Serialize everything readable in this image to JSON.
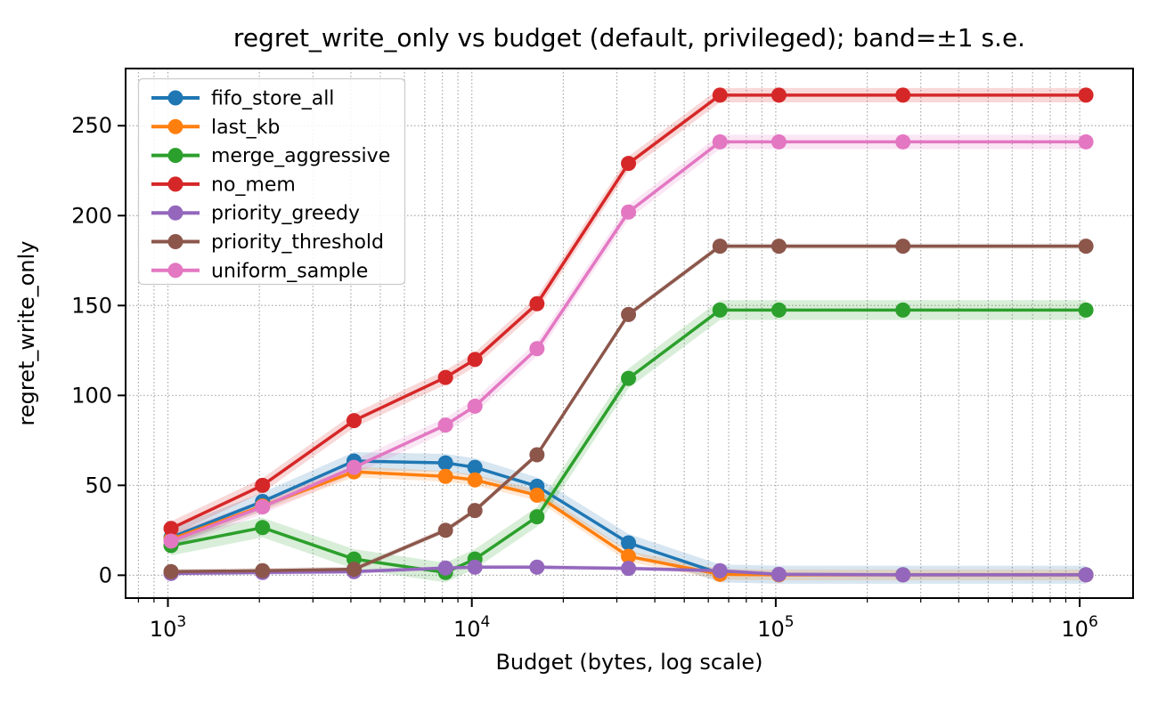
{
  "chart_data": {
    "type": "line",
    "title": "regret_write_only vs budget (default, privileged); band=±1 s.e.",
    "xlabel": "Budget (bytes, log scale)",
    "ylabel": "regret_write_only",
    "x_scale": "log",
    "grid": true,
    "legend_position": "upper left",
    "x": [
      1024,
      2048,
      4096,
      8192,
      10240,
      16384,
      32768,
      65536,
      102400,
      262144,
      1048576
    ],
    "x_ticks": [
      {
        "base": "10",
        "exp": "3",
        "value": 1000
      },
      {
        "base": "10",
        "exp": "4",
        "value": 10000
      },
      {
        "base": "10",
        "exp": "5",
        "value": 100000
      },
      {
        "base": "10",
        "exp": "6",
        "value": 1000000
      }
    ],
    "y_ticks": [
      0,
      50,
      100,
      150,
      200,
      250
    ],
    "xlim_log": [
      2.8608,
      6.1756
    ],
    "ylim": [
      -12.7,
      281.8
    ],
    "band_note": "shaded band = ±1 standard error around each line",
    "series": [
      {
        "name": "fifo_store_all",
        "color": "#1f77b4",
        "band": 5.0,
        "values": [
          21,
          41,
          63.5,
          62.5,
          60,
          49.5,
          18,
          1,
          0.3,
          0.3,
          0.3
        ]
      },
      {
        "name": "last_kb",
        "color": "#ff7f0e",
        "band": 3.0,
        "values": [
          20,
          38.5,
          57.5,
          55,
          53,
          44.5,
          10.5,
          0.5,
          0.2,
          0.2,
          0.2
        ]
      },
      {
        "name": "merge_aggressive",
        "color": "#2ca02c",
        "band": 5.5,
        "values": [
          16.5,
          26.5,
          9,
          1.5,
          9,
          32.5,
          109.5,
          147.5,
          147.5,
          147.5,
          147.5
        ]
      },
      {
        "name": "no_mem",
        "color": "#d62728",
        "band": 4.0,
        "values": [
          26,
          50,
          86,
          110,
          120,
          151,
          229,
          267,
          267,
          267,
          267
        ]
      },
      {
        "name": "priority_greedy",
        "color": "#9467bd",
        "band": 1.2,
        "values": [
          1,
          1.5,
          2,
          4,
          4.5,
          4.5,
          3.8,
          2.5,
          0.5,
          0.2,
          0.2
        ]
      },
      {
        "name": "priority_threshold",
        "color": "#8c564b",
        "band": 1.5,
        "values": [
          2,
          2.5,
          3.3,
          25,
          36,
          67,
          145,
          183,
          183,
          183,
          183
        ]
      },
      {
        "name": "uniform_sample",
        "color": "#e377c2",
        "band": 4.0,
        "values": [
          19,
          38,
          60,
          83.5,
          94,
          126,
          202,
          241,
          241,
          241,
          241
        ]
      }
    ]
  },
  "style_tokens": {
    "grid_color": "#aaaaaa",
    "spine_color": "#000000",
    "legend_border": "#cccccc",
    "background": "#ffffff"
  }
}
